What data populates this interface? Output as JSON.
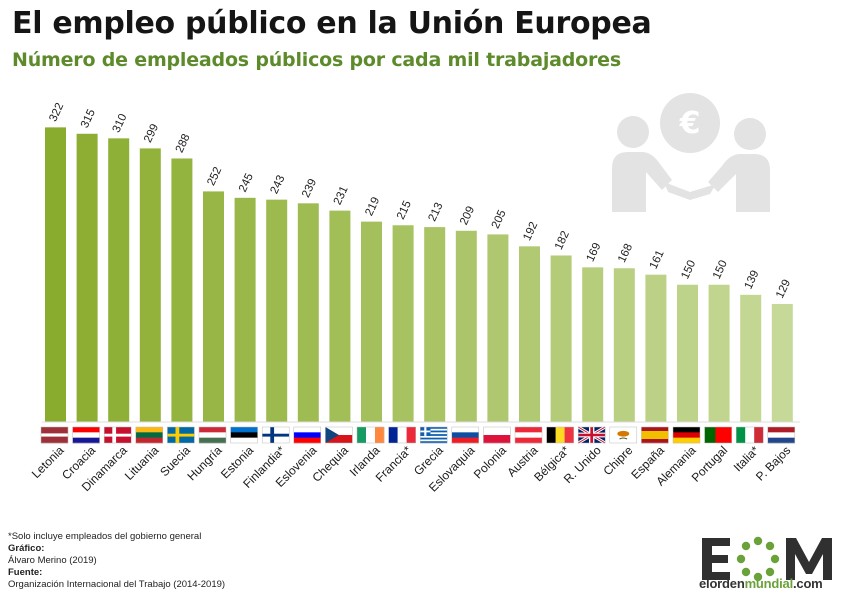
{
  "title": "El empleo público en la Unión Europea",
  "subtitle": "Número de empleados públicos por cada mil trabajadores",
  "chart_data": {
    "type": "bar",
    "categories": [
      "Letonia",
      "Croacia",
      "Dinamarca",
      "Lituania",
      "Suecia",
      "Hungría",
      "Estonia",
      "Finlandia*",
      "Eslovenia",
      "Chequia",
      "Irlanda",
      "Francia*",
      "Grecia",
      "Eslovaquia",
      "Polonia",
      "Austria",
      "Bélgica*",
      "R. Unido",
      "Chipre",
      "España",
      "Alemania",
      "Portugal",
      "Italia*",
      "P. Bajos"
    ],
    "values": [
      322,
      315,
      310,
      299,
      288,
      252,
      245,
      243,
      239,
      231,
      219,
      215,
      213,
      209,
      205,
      192,
      182,
      169,
      168,
      161,
      150,
      150,
      139,
      129
    ],
    "ylim": [
      0,
      330
    ],
    "colors": {
      "dark": "#8aac2e",
      "light": "#c6d998"
    }
  },
  "footer": {
    "note": "*Solo incluye empleados del gobierno general",
    "grafico_label": "Gráfico:",
    "grafico_value": "Álvaro Merino (2019)",
    "fuente_label": "Fuente:",
    "fuente_value": "Organización Internacional del Trabajo (2014-2019)"
  },
  "logo": {
    "text_part1": "elorden",
    "text_part2": "mundial",
    "text_part3": ".com",
    "icon": "eom-logo-icon"
  },
  "illustration": {
    "icon": "euro-handshake-icon"
  }
}
